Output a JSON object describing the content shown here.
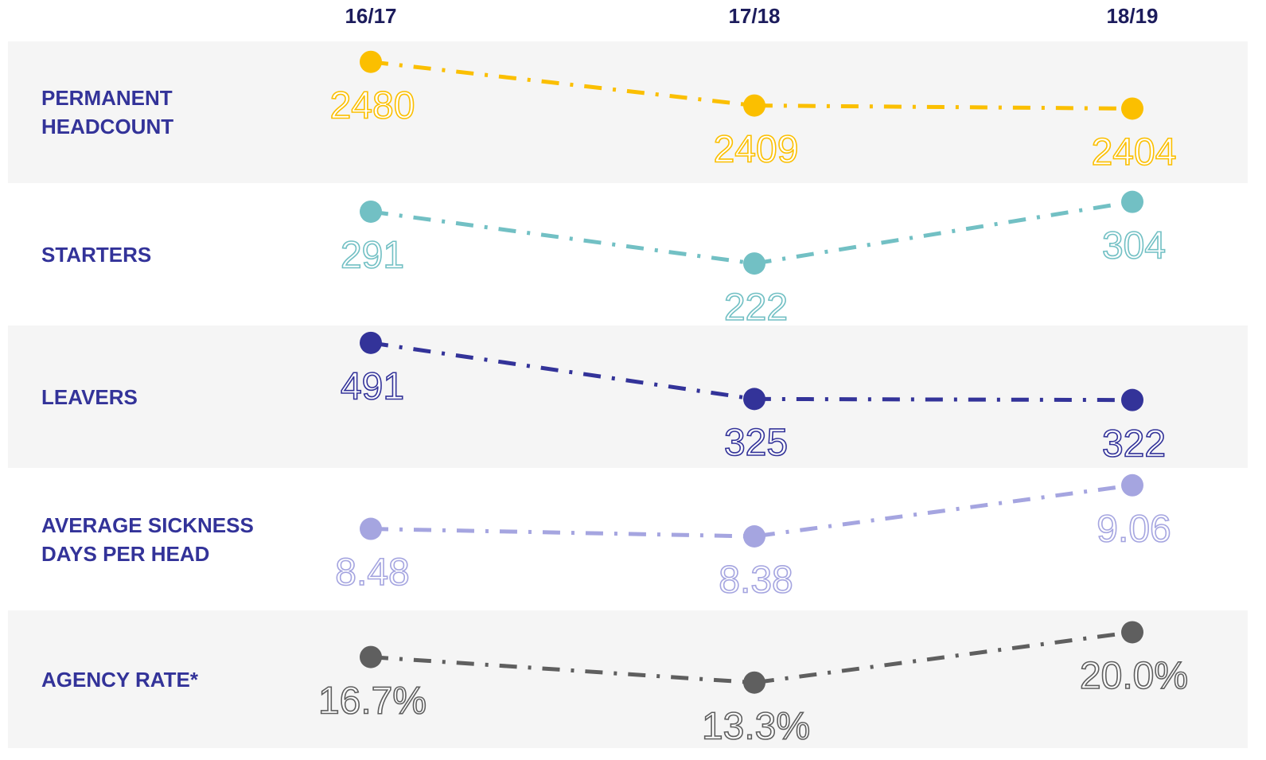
{
  "chart_data": {
    "type": "line",
    "categories": [
      "16/17",
      "17/18",
      "18/19"
    ],
    "series": [
      {
        "name": "PERMANENT HEADCOUNT",
        "color": "#fbbf00",
        "values": [
          2480,
          2409,
          2404
        ],
        "ylim": [
          2380,
          2490
        ]
      },
      {
        "name": "STARTERS",
        "color": "#72c0c4",
        "values": [
          291,
          222,
          304
        ],
        "ylim": [
          220,
          310
        ]
      },
      {
        "name": "LEAVERS",
        "color": "#333399",
        "values": [
          491,
          325,
          322
        ],
        "ylim": [
          300,
          500
        ]
      },
      {
        "name": "AVERAGE SICKNESS DAYS PER HEAD",
        "color": "#a5a5e0",
        "values": [
          8.48,
          8.38,
          9.06
        ],
        "ylim": [
          8.2,
          9.1
        ]
      },
      {
        "name": "AGENCY RATE*",
        "color": "#5f5f5f",
        "values": [
          16.7,
          13.3,
          20.0
        ],
        "value_labels": [
          "16.7%",
          "13.3%",
          "20.0%"
        ],
        "ylim": [
          12,
          21
        ]
      }
    ]
  }
}
